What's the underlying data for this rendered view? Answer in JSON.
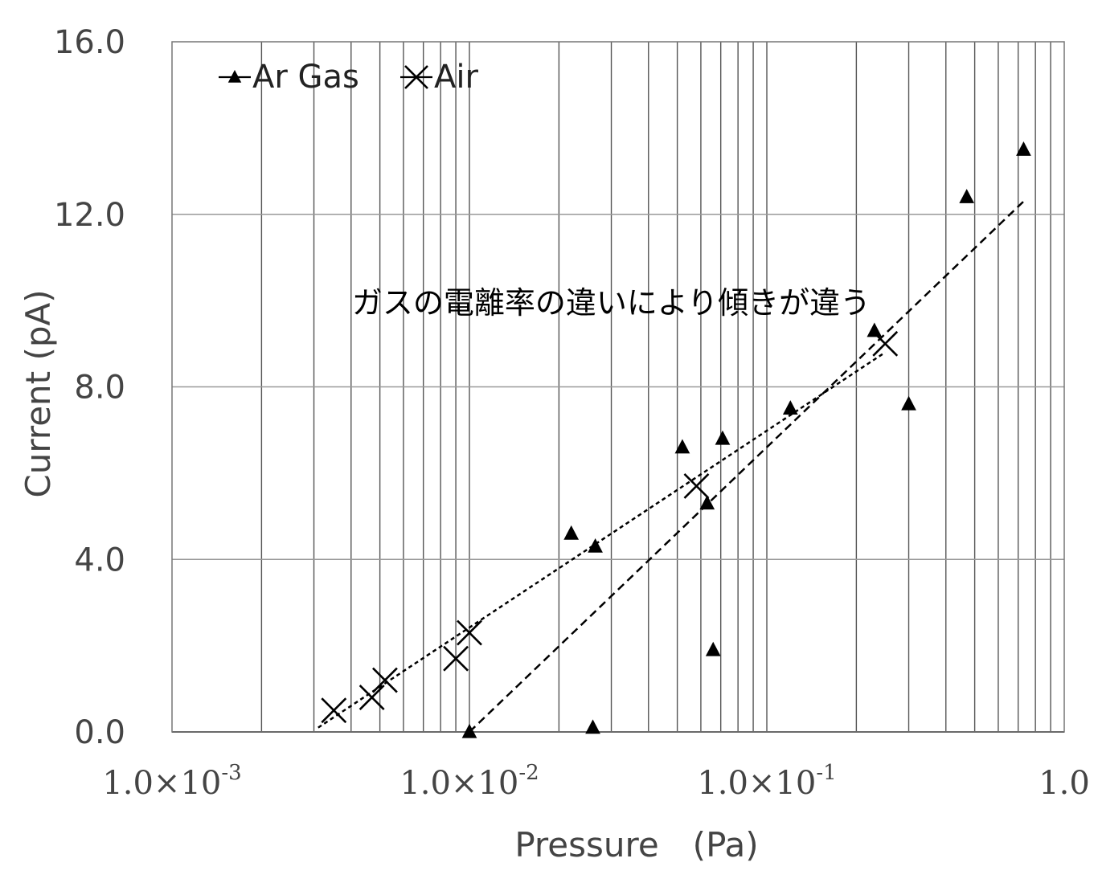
{
  "chart_data": {
    "type": "scatter",
    "xlabel": "Pressure　(Pa)",
    "ylabel": "Current (pA)",
    "x_scale": "log",
    "xlim": [
      0.001,
      1.0
    ],
    "ylim": [
      0,
      16
    ],
    "grid": true,
    "legend_position": "top-left",
    "y_ticks": [
      {
        "value": 0,
        "label": "0.0"
      },
      {
        "value": 4,
        "label": "4.0"
      },
      {
        "value": 8,
        "label": "8.0"
      },
      {
        "value": 12,
        "label": "12.0"
      },
      {
        "value": 16,
        "label": "16.0"
      }
    ],
    "x_ticks": [
      {
        "value": 0.001,
        "base": "1.0×10",
        "exp": "-3"
      },
      {
        "value": 0.01,
        "base": "1.0×10",
        "exp": "-2"
      },
      {
        "value": 0.1,
        "base": "1.0×10",
        "exp": "-1"
      },
      {
        "value": 1.0,
        "base": "1.0",
        "exp": ""
      }
    ],
    "series": [
      {
        "name": "Ar Gas",
        "marker": "triangle",
        "color": "#000000",
        "points": [
          {
            "x": 0.01,
            "y": 0.0
          },
          {
            "x": 0.022,
            "y": 4.6
          },
          {
            "x": 0.026,
            "y": 0.1
          },
          {
            "x": 0.0265,
            "y": 4.3
          },
          {
            "x": 0.052,
            "y": 6.6
          },
          {
            "x": 0.063,
            "y": 5.3
          },
          {
            "x": 0.066,
            "y": 1.9
          },
          {
            "x": 0.071,
            "y": 6.8
          },
          {
            "x": 0.12,
            "y": 7.5
          },
          {
            "x": 0.23,
            "y": 9.3
          },
          {
            "x": 0.3,
            "y": 7.6
          },
          {
            "x": 0.47,
            "y": 12.4
          },
          {
            "x": 0.73,
            "y": 13.5
          }
        ],
        "trend": [
          {
            "x": 0.01,
            "y": 0.0
          },
          {
            "x": 0.73,
            "y": 12.3
          }
        ]
      },
      {
        "name": "Air",
        "marker": "x",
        "color": "#000000",
        "points": [
          {
            "x": 0.0035,
            "y": 0.5
          },
          {
            "x": 0.0047,
            "y": 0.8
          },
          {
            "x": 0.0052,
            "y": 1.2
          },
          {
            "x": 0.009,
            "y": 1.7
          },
          {
            "x": 0.01,
            "y": 2.3
          },
          {
            "x": 0.058,
            "y": 5.7
          },
          {
            "x": 0.25,
            "y": 9.0
          }
        ],
        "trend": [
          {
            "x": 0.0031,
            "y": 0.1
          },
          {
            "x": 0.25,
            "y": 8.8
          }
        ]
      }
    ],
    "annotations": [
      {
        "text": "ガスの電離率の違いにより傾きが違う",
        "x": 0.03,
        "y": 9.7
      }
    ]
  }
}
